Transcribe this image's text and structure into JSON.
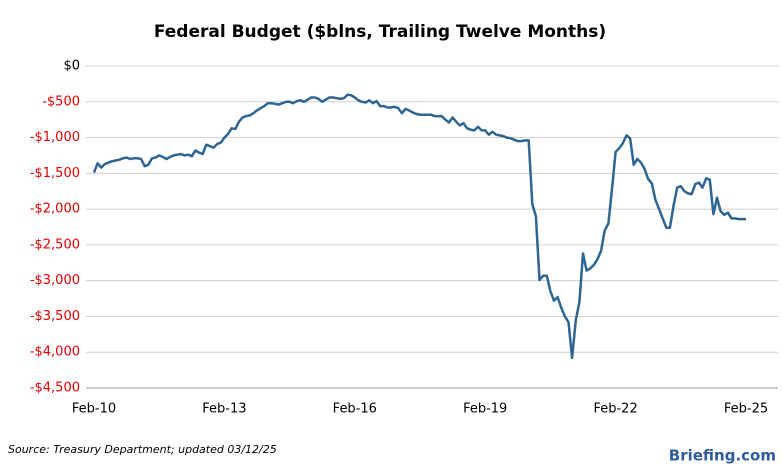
{
  "chart_data": {
    "type": "line",
    "title": "Federal Budget ($blns, Trailing Twelve Months)",
    "source": "Source:  Treasury Department;  updated  03/12/25",
    "brand": "Briefing.com",
    "x": [
      "Feb-10",
      "Mar-10",
      "Apr-10",
      "May-10",
      "Jun-10",
      "Jul-10",
      "Aug-10",
      "Sep-10",
      "Oct-10",
      "Nov-10",
      "Dec-10",
      "Jan-11",
      "Feb-11",
      "Mar-11",
      "Apr-11",
      "May-11",
      "Jun-11",
      "Jul-11",
      "Aug-11",
      "Sep-11",
      "Oct-11",
      "Nov-11",
      "Dec-11",
      "Jan-12",
      "Feb-12",
      "Mar-12",
      "Apr-12",
      "May-12",
      "Jun-12",
      "Jul-12",
      "Aug-12",
      "Sep-12",
      "Oct-12",
      "Nov-12",
      "Dec-12",
      "Jan-13",
      "Feb-13",
      "Mar-13",
      "Apr-13",
      "May-13",
      "Jun-13",
      "Jul-13",
      "Aug-13",
      "Sep-13",
      "Oct-13",
      "Nov-13",
      "Dec-13",
      "Jan-14",
      "Feb-14",
      "Mar-14",
      "Apr-14",
      "May-14",
      "Jun-14",
      "Jul-14",
      "Aug-14",
      "Sep-14",
      "Oct-14",
      "Nov-14",
      "Dec-14",
      "Jan-15",
      "Feb-15",
      "Mar-15",
      "Apr-15",
      "May-15",
      "Jun-15",
      "Jul-15",
      "Aug-15",
      "Sep-15",
      "Oct-15",
      "Nov-15",
      "Dec-15",
      "Jan-16",
      "Feb-16",
      "Mar-16",
      "Apr-16",
      "May-16",
      "Jun-16",
      "Jul-16",
      "Aug-16",
      "Sep-16",
      "Oct-16",
      "Nov-16",
      "Dec-16",
      "Jan-17",
      "Feb-17",
      "Mar-17",
      "Apr-17",
      "May-17",
      "Jun-17",
      "Jul-17",
      "Aug-17",
      "Sep-17",
      "Oct-17",
      "Nov-17",
      "Dec-17",
      "Jan-18",
      "Feb-18",
      "Mar-18",
      "Apr-18",
      "May-18",
      "Jun-18",
      "Jul-18",
      "Aug-18",
      "Sep-18",
      "Oct-18",
      "Nov-18",
      "Dec-18",
      "Jan-19",
      "Feb-19",
      "Mar-19",
      "Apr-19",
      "May-19",
      "Jun-19",
      "Jul-19",
      "Aug-19",
      "Sep-19",
      "Oct-19",
      "Nov-19",
      "Dec-19",
      "Jan-20",
      "Feb-20",
      "Mar-20",
      "Apr-20",
      "May-20",
      "Jun-20",
      "Jul-20",
      "Aug-20",
      "Sep-20",
      "Oct-20",
      "Nov-20",
      "Dec-20",
      "Jan-21",
      "Feb-21",
      "Mar-21",
      "Apr-21",
      "May-21",
      "Jun-21",
      "Jul-21",
      "Aug-21",
      "Sep-21",
      "Oct-21",
      "Nov-21",
      "Dec-21",
      "Jan-22",
      "Feb-22",
      "Mar-22",
      "Apr-22",
      "May-22",
      "Jun-22",
      "Jul-22",
      "Aug-22",
      "Sep-22",
      "Oct-22",
      "Nov-22",
      "Dec-22",
      "Jan-23",
      "Feb-23",
      "Mar-23",
      "Apr-23",
      "May-23",
      "Jun-23",
      "Jul-23",
      "Aug-23",
      "Sep-23",
      "Oct-23",
      "Nov-23",
      "Dec-23",
      "Jan-24",
      "Feb-24",
      "Mar-24",
      "Apr-24",
      "May-24",
      "Jun-24",
      "Jul-24",
      "Aug-24",
      "Sep-24",
      "Oct-24",
      "Nov-24",
      "Dec-24",
      "Jan-25",
      "Feb-25"
    ],
    "values": [
      -1490,
      -1360,
      -1420,
      -1370,
      -1350,
      -1330,
      -1320,
      -1310,
      -1290,
      -1280,
      -1300,
      -1290,
      -1290,
      -1300,
      -1400,
      -1380,
      -1290,
      -1280,
      -1250,
      -1270,
      -1300,
      -1270,
      -1250,
      -1240,
      -1230,
      -1250,
      -1240,
      -1260,
      -1180,
      -1210,
      -1230,
      -1100,
      -1120,
      -1140,
      -1090,
      -1070,
      -1000,
      -950,
      -870,
      -880,
      -780,
      -720,
      -700,
      -690,
      -660,
      -620,
      -590,
      -560,
      -520,
      -520,
      -530,
      -540,
      -520,
      -500,
      -500,
      -520,
      -490,
      -480,
      -500,
      -470,
      -440,
      -440,
      -460,
      -500,
      -470,
      -440,
      -440,
      -450,
      -460,
      -450,
      -400,
      -410,
      -440,
      -480,
      -500,
      -510,
      -480,
      -520,
      -490,
      -560,
      -560,
      -580,
      -580,
      -570,
      -590,
      -660,
      -600,
      -620,
      -650,
      -670,
      -680,
      -680,
      -680,
      -680,
      -700,
      -700,
      -700,
      -750,
      -790,
      -720,
      -780,
      -830,
      -800,
      -870,
      -890,
      -900,
      -850,
      -900,
      -900,
      -960,
      -920,
      -960,
      -970,
      -980,
      -1000,
      -1010,
      -1030,
      -1050,
      -1050,
      -1040,
      -1040,
      -1930,
      -2100,
      -2990,
      -2930,
      -2930,
      -3150,
      -3280,
      -3230,
      -3380,
      -3500,
      -3580,
      -4080,
      -3550,
      -3300,
      -2620,
      -2860,
      -2830,
      -2780,
      -2700,
      -2580,
      -2300,
      -2200,
      -1720,
      -1200,
      -1150,
      -1080,
      -970,
      -1010,
      -1380,
      -1300,
      -1350,
      -1440,
      -1580,
      -1640,
      -1870,
      -2000,
      -2130,
      -2260,
      -2260,
      -1950,
      -1700,
      -1680,
      -1750,
      -1780,
      -1790,
      -1650,
      -1630,
      -1700,
      -1570,
      -1590,
      -2070,
      -1840,
      -2030,
      -2080,
      -2050,
      -2130,
      -2130,
      -2140,
      -2140,
      -2140
    ],
    "color": "#2e6592",
    "xticks": [
      "Feb-10",
      "Feb-13",
      "Feb-16",
      "Feb-19",
      "Feb-22",
      "Feb-25"
    ],
    "ylim": [
      -4500,
      0
    ],
    "yticks": [
      {
        "value": 0,
        "label": "$0"
      },
      {
        "value": -500,
        "label": "-$500"
      },
      {
        "value": -1000,
        "label": "-$1,000"
      },
      {
        "value": -1500,
        "label": "-$1,500"
      },
      {
        "value": -2000,
        "label": "-$2,000"
      },
      {
        "value": -2500,
        "label": "-$2,500"
      },
      {
        "value": -3000,
        "label": "-$3,000"
      },
      {
        "value": -3500,
        "label": "-$3,500"
      },
      {
        "value": -4000,
        "label": "-$4,000"
      },
      {
        "value": -4500,
        "label": "-$4,500"
      }
    ],
    "grid": true,
    "tick_label_color": "#000000",
    "negative_tick_label_color": "#e00000"
  }
}
